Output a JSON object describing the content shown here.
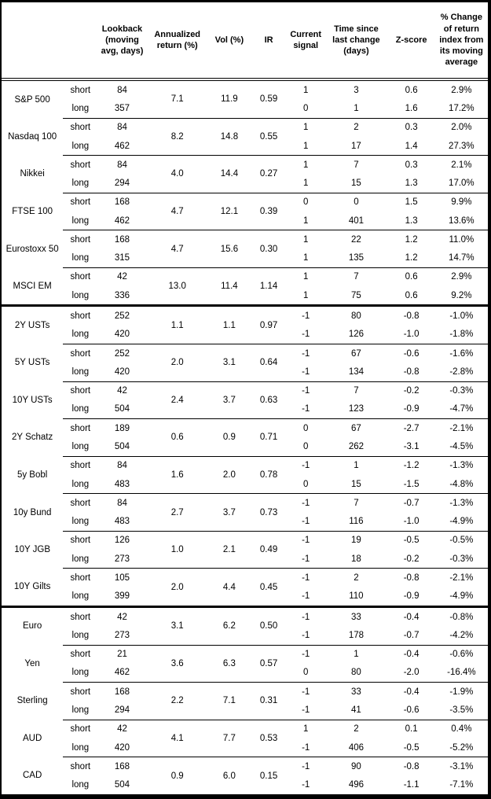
{
  "columns": {
    "asset": "",
    "leg": "",
    "lookback": "Lookback (moving avg, days)",
    "annualized_return": "Annualized return (%)",
    "vol": "Vol (%)",
    "ir": "IR",
    "current_signal": "Current signal",
    "time_since": "Time since last change (days)",
    "z_score": "Z-score",
    "pct_change": "% Change of return index from its moving average"
  },
  "leg_labels": {
    "short": "short",
    "long": "long"
  },
  "sections": [
    {
      "assets": [
        {
          "name": "S&P 500",
          "annualized_return": "7.1",
          "vol": "11.9",
          "ir": "0.59",
          "legs": [
            {
              "leg": "short",
              "lookback": "84",
              "signal": "1",
              "time_since": "3",
              "z_score": "0.6",
              "pct_change": "2.9%"
            },
            {
              "leg": "long",
              "lookback": "357",
              "signal": "0",
              "time_since": "1",
              "z_score": "1.6",
              "pct_change": "17.2%"
            }
          ]
        },
        {
          "name": "Nasdaq 100",
          "annualized_return": "8.2",
          "vol": "14.8",
          "ir": "0.55",
          "legs": [
            {
              "leg": "short",
              "lookback": "84",
              "signal": "1",
              "time_since": "2",
              "z_score": "0.3",
              "pct_change": "2.0%"
            },
            {
              "leg": "long",
              "lookback": "462",
              "signal": "1",
              "time_since": "17",
              "z_score": "1.4",
              "pct_change": "27.3%"
            }
          ]
        },
        {
          "name": "Nikkei",
          "annualized_return": "4.0",
          "vol": "14.4",
          "ir": "0.27",
          "legs": [
            {
              "leg": "short",
              "lookback": "84",
              "signal": "1",
              "time_since": "7",
              "z_score": "0.3",
              "pct_change": "2.1%"
            },
            {
              "leg": "long",
              "lookback": "294",
              "signal": "1",
              "time_since": "15",
              "z_score": "1.3",
              "pct_change": "17.0%"
            }
          ]
        },
        {
          "name": "FTSE 100",
          "annualized_return": "4.7",
          "vol": "12.1",
          "ir": "0.39",
          "legs": [
            {
              "leg": "short",
              "lookback": "168",
              "signal": "0",
              "time_since": "0",
              "z_score": "1.5",
              "pct_change": "9.9%"
            },
            {
              "leg": "long",
              "lookback": "462",
              "signal": "1",
              "time_since": "401",
              "z_score": "1.3",
              "pct_change": "13.6%"
            }
          ]
        },
        {
          "name": "Eurostoxx 50",
          "annualized_return": "4.7",
          "vol": "15.6",
          "ir": "0.30",
          "legs": [
            {
              "leg": "short",
              "lookback": "168",
              "signal": "1",
              "time_since": "22",
              "z_score": "1.2",
              "pct_change": "11.0%"
            },
            {
              "leg": "long",
              "lookback": "315",
              "signal": "1",
              "time_since": "135",
              "z_score": "1.2",
              "pct_change": "14.7%"
            }
          ]
        },
        {
          "name": "MSCI EM",
          "annualized_return": "13.0",
          "vol": "11.4",
          "ir": "1.14",
          "legs": [
            {
              "leg": "short",
              "lookback": "42",
              "signal": "1",
              "time_since": "7",
              "z_score": "0.6",
              "pct_change": "2.9%"
            },
            {
              "leg": "long",
              "lookback": "336",
              "signal": "1",
              "time_since": "75",
              "z_score": "0.6",
              "pct_change": "9.2%"
            }
          ]
        }
      ]
    },
    {
      "assets": [
        {
          "name": "2Y USTs",
          "annualized_return": "1.1",
          "vol": "1.1",
          "ir": "0.97",
          "legs": [
            {
              "leg": "short",
              "lookback": "252",
              "signal": "-1",
              "time_since": "80",
              "z_score": "-0.8",
              "pct_change": "-1.0%"
            },
            {
              "leg": "long",
              "lookback": "420",
              "signal": "-1",
              "time_since": "126",
              "z_score": "-1.0",
              "pct_change": "-1.8%"
            }
          ]
        },
        {
          "name": "5Y USTs",
          "annualized_return": "2.0",
          "vol": "3.1",
          "ir": "0.64",
          "legs": [
            {
              "leg": "short",
              "lookback": "252",
              "signal": "-1",
              "time_since": "67",
              "z_score": "-0.6",
              "pct_change": "-1.6%"
            },
            {
              "leg": "long",
              "lookback": "420",
              "signal": "-1",
              "time_since": "134",
              "z_score": "-0.8",
              "pct_change": "-2.8%"
            }
          ]
        },
        {
          "name": "10Y USTs",
          "annualized_return": "2.4",
          "vol": "3.7",
          "ir": "0.63",
          "legs": [
            {
              "leg": "short",
              "lookback": "42",
              "signal": "-1",
              "time_since": "7",
              "z_score": "-0.2",
              "pct_change": "-0.3%"
            },
            {
              "leg": "long",
              "lookback": "504",
              "signal": "-1",
              "time_since": "123",
              "z_score": "-0.9",
              "pct_change": "-4.7%"
            }
          ]
        },
        {
          "name": "2Y Schatz",
          "annualized_return": "0.6",
          "vol": "0.9",
          "ir": "0.71",
          "legs": [
            {
              "leg": "short",
              "lookback": "189",
              "signal": "0",
              "time_since": "67",
              "z_score": "-2.7",
              "pct_change": "-2.1%"
            },
            {
              "leg": "long",
              "lookback": "504",
              "signal": "0",
              "time_since": "262",
              "z_score": "-3.1",
              "pct_change": "-4.5%"
            }
          ]
        },
        {
          "name": "5y Bobl",
          "annualized_return": "1.6",
          "vol": "2.0",
          "ir": "0.78",
          "legs": [
            {
              "leg": "short",
              "lookback": "84",
              "signal": "-1",
              "time_since": "1",
              "z_score": "-1.2",
              "pct_change": "-1.3%"
            },
            {
              "leg": "long",
              "lookback": "483",
              "signal": "0",
              "time_since": "15",
              "z_score": "-1.5",
              "pct_change": "-4.8%"
            }
          ]
        },
        {
          "name": "10y Bund",
          "annualized_return": "2.7",
          "vol": "3.7",
          "ir": "0.73",
          "legs": [
            {
              "leg": "short",
              "lookback": "84",
              "signal": "-1",
              "time_since": "7",
              "z_score": "-0.7",
              "pct_change": "-1.3%"
            },
            {
              "leg": "long",
              "lookback": "483",
              "signal": "-1",
              "time_since": "116",
              "z_score": "-1.0",
              "pct_change": "-4.9%"
            }
          ]
        },
        {
          "name": "10Y JGB",
          "annualized_return": "1.0",
          "vol": "2.1",
          "ir": "0.49",
          "legs": [
            {
              "leg": "short",
              "lookback": "126",
              "signal": "-1",
              "time_since": "19",
              "z_score": "-0.5",
              "pct_change": "-0.5%"
            },
            {
              "leg": "long",
              "lookback": "273",
              "signal": "-1",
              "time_since": "18",
              "z_score": "-0.2",
              "pct_change": "-0.3%"
            }
          ]
        },
        {
          "name": "10Y Gilts",
          "annualized_return": "2.0",
          "vol": "4.4",
          "ir": "0.45",
          "legs": [
            {
              "leg": "short",
              "lookback": "105",
              "signal": "-1",
              "time_since": "2",
              "z_score": "-0.8",
              "pct_change": "-2.1%"
            },
            {
              "leg": "long",
              "lookback": "399",
              "signal": "-1",
              "time_since": "110",
              "z_score": "-0.9",
              "pct_change": "-4.9%"
            }
          ]
        }
      ]
    },
    {
      "assets": [
        {
          "name": "Euro",
          "annualized_return": "3.1",
          "vol": "6.2",
          "ir": "0.50",
          "legs": [
            {
              "leg": "short",
              "lookback": "42",
              "signal": "-1",
              "time_since": "33",
              "z_score": "-0.4",
              "pct_change": "-0.8%"
            },
            {
              "leg": "long",
              "lookback": "273",
              "signal": "-1",
              "time_since": "178",
              "z_score": "-0.7",
              "pct_change": "-4.2%"
            }
          ]
        },
        {
          "name": "Yen",
          "annualized_return": "3.6",
          "vol": "6.3",
          "ir": "0.57",
          "legs": [
            {
              "leg": "short",
              "lookback": "21",
              "signal": "-1",
              "time_since": "1",
              "z_score": "-0.4",
              "pct_change": "-0.6%"
            },
            {
              "leg": "long",
              "lookback": "462",
              "signal": "0",
              "time_since": "80",
              "z_score": "-2.0",
              "pct_change": "-16.4%"
            }
          ]
        },
        {
          "name": "Sterling",
          "annualized_return": "2.2",
          "vol": "7.1",
          "ir": "0.31",
          "legs": [
            {
              "leg": "short",
              "lookback": "168",
              "signal": "-1",
              "time_since": "33",
              "z_score": "-0.4",
              "pct_change": "-1.9%"
            },
            {
              "leg": "long",
              "lookback": "294",
              "signal": "-1",
              "time_since": "41",
              "z_score": "-0.6",
              "pct_change": "-3.5%"
            }
          ]
        },
        {
          "name": "AUD",
          "annualized_return": "4.1",
          "vol": "7.7",
          "ir": "0.53",
          "legs": [
            {
              "leg": "short",
              "lookback": "42",
              "signal": "1",
              "time_since": "2",
              "z_score": "0.1",
              "pct_change": "0.4%"
            },
            {
              "leg": "long",
              "lookback": "420",
              "signal": "-1",
              "time_since": "406",
              "z_score": "-0.5",
              "pct_change": "-5.2%"
            }
          ]
        },
        {
          "name": "CAD",
          "annualized_return": "0.9",
          "vol": "6.0",
          "ir": "0.15",
          "legs": [
            {
              "leg": "short",
              "lookback": "168",
              "signal": "-1",
              "time_since": "90",
              "z_score": "-0.8",
              "pct_change": "-3.1%"
            },
            {
              "leg": "long",
              "lookback": "504",
              "signal": "-1",
              "time_since": "496",
              "z_score": "-1.1",
              "pct_change": "-7.1%"
            }
          ]
        }
      ]
    }
  ]
}
